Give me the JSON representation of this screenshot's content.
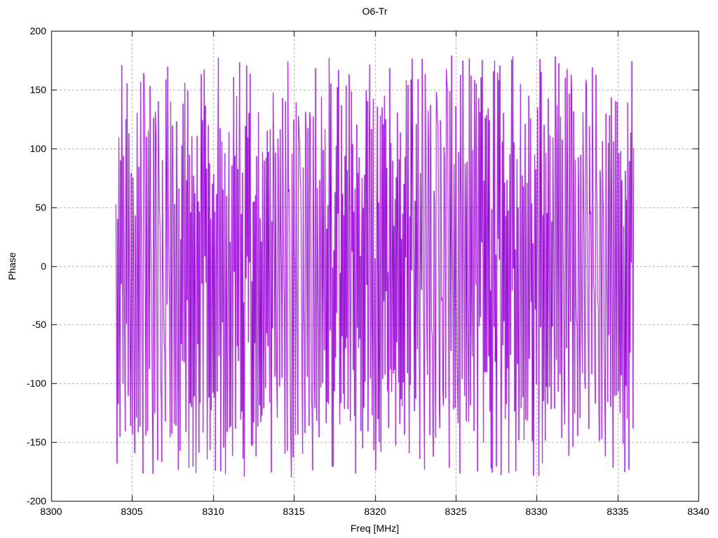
{
  "window": {
    "background_color": "#ffffff",
    "text_color": "#000000"
  },
  "chart_data": {
    "type": "line",
    "title": "O6-Tr",
    "xlabel": "Freq [MHz]",
    "ylabel": "Phase",
    "xlim": [
      8300,
      8340
    ],
    "ylim": [
      -200,
      200
    ],
    "xticks": [
      8300,
      8305,
      8310,
      8315,
      8320,
      8325,
      8330,
      8335,
      8340
    ],
    "yticks": [
      -200,
      -150,
      -100,
      -50,
      0,
      50,
      100,
      150,
      200
    ],
    "grid": true,
    "grid_style": "dashed",
    "grid_color": "#a8a8a8",
    "axis_color": "#000000",
    "ticks_mirrored_inward": true,
    "legend_position": "none",
    "series": [
      {
        "name": "O6-Tr",
        "color": "#9400d3",
        "style": "lines",
        "x_start": 8304.0,
        "x_end": 8336.0,
        "y_wrap_min": -180,
        "y_wrap_max": 180,
        "appearance": "wrapped phase noise rendered as dense vertical strokes spanning approximately -180 to +180 degrees across the full 8304-8336 MHz span",
        "synthesis": {
          "points": 880,
          "seed": 1337,
          "delta_base_deg": 137.5,
          "delta_mod_amp_deg": 80,
          "delta_mod_freq": 0.7,
          "delta_rand_deg": 150
        }
      }
    ]
  }
}
